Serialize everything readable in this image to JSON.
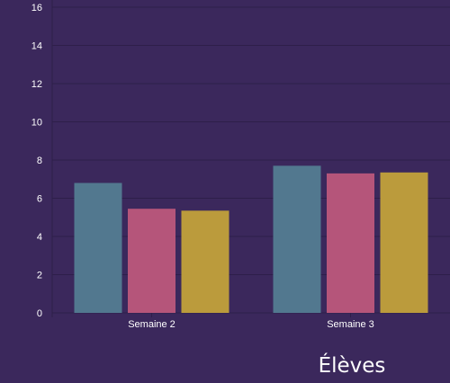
{
  "chart_data": {
    "type": "bar",
    "title": "Élèves",
    "categories": [
      "Semaine 2",
      "Semaine 3"
    ],
    "series": [
      {
        "color": "#52788f",
        "values": [
          6.8,
          7.7
        ]
      },
      {
        "color": "#b5557a",
        "values": [
          5.45,
          7.3
        ]
      },
      {
        "color": "#bb9b3c",
        "values": [
          5.35,
          7.35
        ]
      }
    ],
    "ylim": [
      0,
      16
    ],
    "yticks": [
      0,
      2,
      4,
      6,
      8,
      10,
      12,
      14,
      16
    ],
    "grid": true,
    "legend": "none"
  },
  "colors": {
    "background": "#3b285c",
    "grid": "#2e1f4a",
    "text": "#ffffff"
  }
}
